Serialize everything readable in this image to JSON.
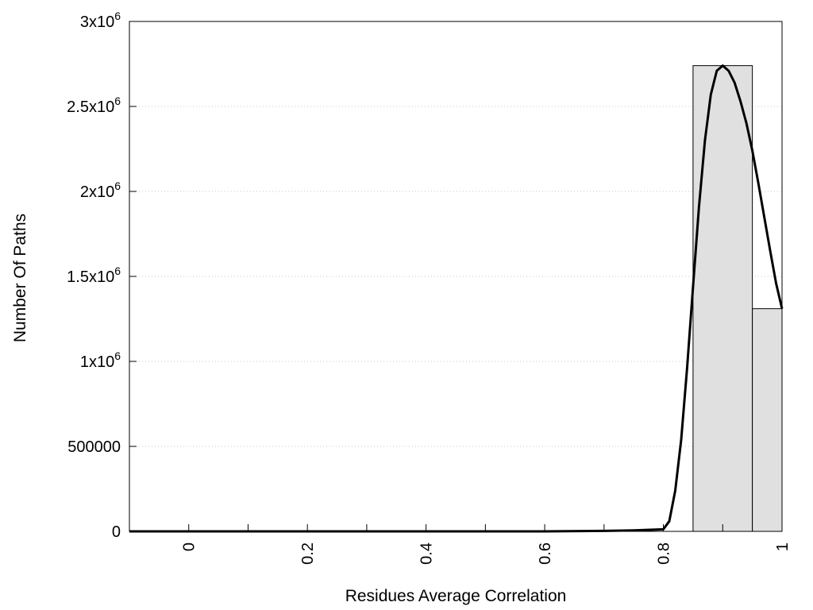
{
  "chart_data": {
    "type": "bar",
    "title": "",
    "xlabel": "Residues Average Correlation",
    "ylabel": "Number Of Paths",
    "xlim": [
      -0.1,
      1.0
    ],
    "ylim": [
      0,
      3000000
    ],
    "grid": "horizontal dotted",
    "x_ticks": [
      {
        "value": 0,
        "label": "0"
      },
      {
        "value": 0.2,
        "label": "0.2"
      },
      {
        "value": 0.4,
        "label": "0.4"
      },
      {
        "value": 0.6,
        "label": "0.6"
      },
      {
        "value": 0.8,
        "label": "0.8"
      },
      {
        "value": 1.0,
        "label": "1"
      }
    ],
    "x_minor_ticks": [
      0.1,
      0.3,
      0.5,
      0.7,
      0.9
    ],
    "y_ticks": [
      {
        "value": 0,
        "base": "0",
        "exp": ""
      },
      {
        "value": 500000,
        "base": "500000",
        "exp": ""
      },
      {
        "value": 1000000,
        "base": "1x10",
        "exp": "6"
      },
      {
        "value": 1500000,
        "base": "1.5x10",
        "exp": "6"
      },
      {
        "value": 2000000,
        "base": "2x10",
        "exp": "6"
      },
      {
        "value": 2500000,
        "base": "2.5x10",
        "exp": "6"
      },
      {
        "value": 3000000,
        "base": "3x10",
        "exp": "6"
      }
    ],
    "bars": [
      {
        "x_start": 0.85,
        "x_end": 0.95,
        "value": 2740000
      },
      {
        "x_start": 0.95,
        "x_end": 1.05,
        "value": 1310000
      }
    ],
    "curve": {
      "type": "line",
      "x": [
        -0.1,
        0.0,
        0.2,
        0.4,
        0.6,
        0.7,
        0.75,
        0.8,
        0.81,
        0.82,
        0.83,
        0.84,
        0.85,
        0.86,
        0.87,
        0.88,
        0.89,
        0.9,
        0.91,
        0.92,
        0.93,
        0.94,
        0.95,
        0.96,
        0.97,
        0.98,
        0.99,
        1.0
      ],
      "y": [
        0,
        0,
        0,
        0,
        0,
        3000,
        6000,
        12000,
        60000,
        240000,
        540000,
        960000,
        1440000,
        1910000,
        2300000,
        2570000,
        2710000,
        2740000,
        2710000,
        2640000,
        2530000,
        2400000,
        2240000,
        2050000,
        1850000,
        1650000,
        1460000,
        1310000
      ]
    },
    "bar_fill": "#e0e0e0",
    "line_color": "#000000"
  }
}
